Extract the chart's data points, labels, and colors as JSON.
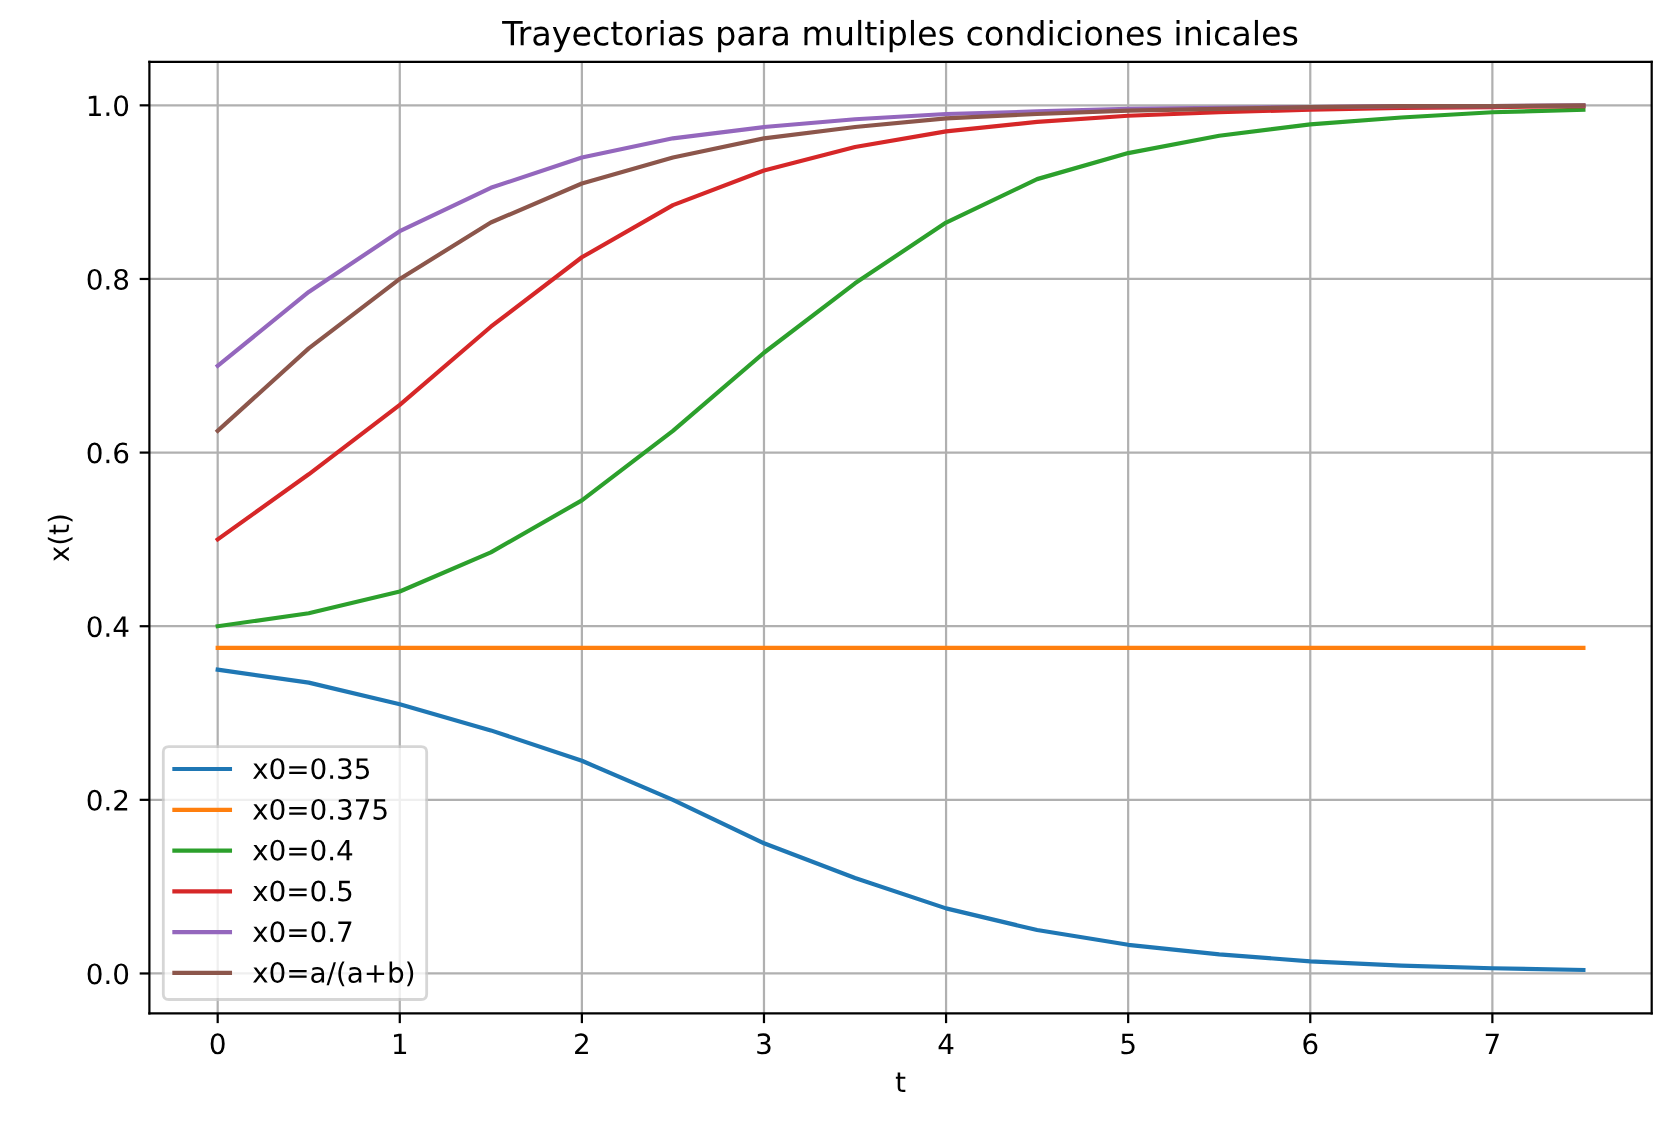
{
  "chart_data": {
    "type": "line",
    "title": "Trayectorias para multiples condiciones inicales",
    "xlabel": "t",
    "ylabel": "x(t)",
    "x": [
      0,
      0.5,
      1,
      1.5,
      2,
      2.5,
      3,
      3.5,
      4,
      4.5,
      5,
      5.5,
      6,
      6.5,
      7,
      7.5
    ],
    "series": [
      {
        "name": "x0=0.35",
        "color": "#1f77b4",
        "values": [
          0.35,
          0.335,
          0.31,
          0.28,
          0.245,
          0.2,
          0.15,
          0.11,
          0.075,
          0.05,
          0.033,
          0.022,
          0.014,
          0.009,
          0.006,
          0.004
        ]
      },
      {
        "name": "x0=0.375",
        "color": "#ff7f0e",
        "values": [
          0.375,
          0.375,
          0.375,
          0.375,
          0.375,
          0.375,
          0.375,
          0.375,
          0.375,
          0.375,
          0.375,
          0.375,
          0.375,
          0.375,
          0.375,
          0.375
        ]
      },
      {
        "name": "x0=0.4",
        "color": "#2ca02c",
        "values": [
          0.4,
          0.415,
          0.44,
          0.485,
          0.545,
          0.625,
          0.715,
          0.795,
          0.865,
          0.915,
          0.945,
          0.965,
          0.978,
          0.986,
          0.992,
          0.995
        ]
      },
      {
        "name": "x0=0.5",
        "color": "#d62728",
        "values": [
          0.5,
          0.575,
          0.655,
          0.745,
          0.825,
          0.885,
          0.925,
          0.952,
          0.97,
          0.981,
          0.988,
          0.992,
          0.995,
          0.997,
          0.998,
          0.999
        ]
      },
      {
        "name": "x0=0.7",
        "color": "#9467bd",
        "values": [
          0.7,
          0.785,
          0.855,
          0.905,
          0.94,
          0.962,
          0.975,
          0.984,
          0.99,
          0.993,
          0.996,
          0.997,
          0.998,
          0.999,
          0.999,
          1.0
        ]
      },
      {
        "name": "x0=a/(a+b)",
        "color": "#8c564b",
        "values": [
          0.625,
          0.72,
          0.8,
          0.865,
          0.91,
          0.94,
          0.962,
          0.975,
          0.985,
          0.99,
          0.994,
          0.996,
          0.998,
          0.999,
          0.999,
          1.0
        ]
      }
    ],
    "xlim": [
      -0.375,
      7.875
    ],
    "ylim": [
      -0.046,
      1.05
    ],
    "xticks": [
      0,
      1,
      2,
      3,
      4,
      5,
      6,
      7
    ],
    "yticks": [
      {
        "value": 0,
        "label": "0.0"
      },
      {
        "value": 0.2,
        "label": "0.2"
      },
      {
        "value": 0.4,
        "label": "0.4"
      },
      {
        "value": 0.6,
        "label": "0.6"
      },
      {
        "value": 0.8,
        "label": "0.8"
      },
      {
        "value": 1,
        "label": "1.0"
      }
    ],
    "grid": true,
    "legend": "lower left",
    "marker": "none",
    "line_style": "solid"
  }
}
